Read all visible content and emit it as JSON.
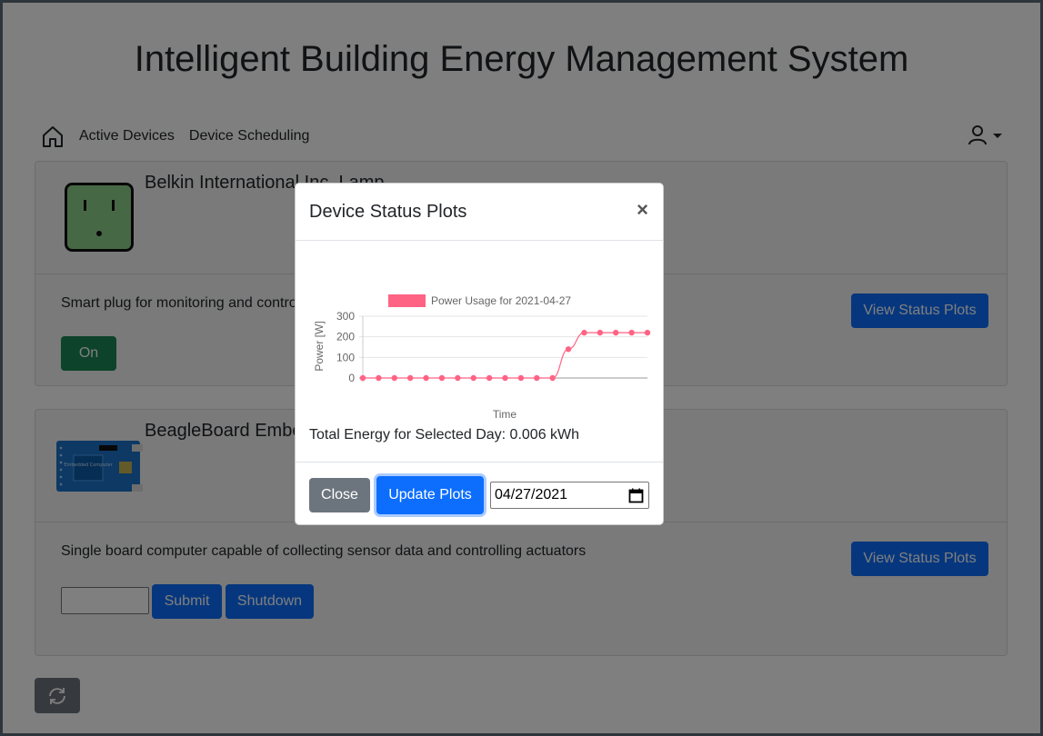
{
  "header": {
    "title": "Intelligent Building Energy Management System"
  },
  "nav": {
    "items": [
      "Active Devices",
      "Device Scheduling"
    ]
  },
  "devices": [
    {
      "name": "Belkin International Inc. Lamp",
      "description": "Smart plug for monitoring and controlling",
      "status_button": "View Status Plots",
      "toggle_label": "On"
    },
    {
      "name": "BeagleBoard Embedded Computer",
      "description": "Single board computer capable of collecting sensor data and controlling actuators",
      "status_button": "View Status Plots",
      "board_label": "Embedded Computer",
      "submit_label": "Submit",
      "shutdown_label": "Shutdown",
      "input_value": ""
    }
  ],
  "modal": {
    "title": "Device Status Plots",
    "close_symbol": "×",
    "energy_text": "Total Energy for Selected Day: 0.006 kWh",
    "close_label": "Close",
    "update_label": "Update Plots",
    "date_value": "04/27/2021"
  },
  "chart_data": {
    "type": "line",
    "title": "",
    "legend": "Power Usage for 2021-04-27",
    "xlabel": "Time",
    "ylabel": "Power [W]",
    "ylim": [
      0,
      300
    ],
    "yticks": [
      0,
      100,
      200,
      300
    ],
    "x": [
      0,
      1,
      2,
      3,
      4,
      5,
      6,
      7,
      8,
      9,
      10,
      11,
      12,
      13,
      14,
      15,
      16,
      17,
      18
    ],
    "series": [
      {
        "name": "Power Usage for 2021-04-27",
        "color": "#ff6384",
        "values": [
          0,
          0,
          0,
          0,
          0,
          0,
          0,
          0,
          0,
          0,
          0,
          0,
          0,
          140,
          220,
          220,
          220,
          220,
          220
        ]
      }
    ]
  }
}
